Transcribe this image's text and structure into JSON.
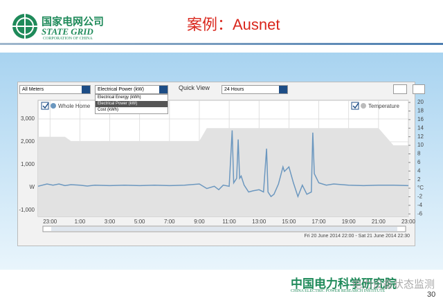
{
  "header": {
    "logo_cn": "国家电网公司",
    "logo_en": "STATE GRID",
    "logo_sub": "CORPORATION OF CHINA",
    "title": "案例：Ausnet"
  },
  "controls": {
    "meter": "All Meters",
    "measure": "Electrical Power (kW)",
    "quick_view_label": "Quick View",
    "quick_view": "24 Hours",
    "menu": [
      "Electrical Energy (kWh)",
      "Electrical Power (kW)",
      "Cost (kWh)"
    ]
  },
  "chart_data": {
    "type": "line",
    "x": [
      22.2,
      22.8,
      23.2,
      23.6,
      24.0,
      24.4,
      25,
      25.5,
      26,
      27,
      28,
      29,
      30,
      31,
      32,
      33,
      33.5,
      34,
      34.3,
      34.6,
      35.0,
      35.2,
      35.3,
      35.5,
      35.6,
      35.7,
      35.8,
      36.0,
      36.3,
      36.6,
      37.0,
      37.3,
      37.5,
      37.6,
      37.8,
      38.0,
      38.3,
      38.6,
      38.7,
      39.0,
      39.3,
      39.6,
      39.9,
      40.2,
      40.5,
      40.6,
      40.7,
      41.0,
      41.5,
      42,
      43,
      44,
      45,
      46,
      47
    ],
    "series": [
      {
        "name": "Temperature",
        "color": "#e2e2e2",
        "axis": "y2",
        "values": [
          12,
          12,
          12,
          12,
          12,
          11,
          11,
          11,
          11,
          11,
          11,
          11,
          11,
          11,
          11,
          11,
          14,
          14,
          14,
          14,
          14,
          14,
          14,
          14,
          14,
          14,
          14,
          14,
          14,
          14,
          14,
          14,
          14,
          14,
          14,
          14,
          14,
          14,
          14,
          14,
          14,
          14,
          14,
          14,
          14,
          14,
          14,
          14,
          14,
          14,
          14,
          14,
          14,
          10,
          10
        ]
      },
      {
        "name": "Whole Home",
        "color": "#6b97bf",
        "values": [
          50,
          150,
          100,
          150,
          80,
          120,
          100,
          60,
          100,
          80,
          100,
          80,
          100,
          80,
          100,
          150,
          -50,
          50,
          -100,
          100,
          50,
          2500,
          200,
          400,
          2100,
          400,
          500,
          100,
          -200,
          -150,
          -100,
          -200,
          1700,
          -200,
          -400,
          -300,
          150,
          900,
          700,
          900,
          200,
          -400,
          100,
          -300,
          -200,
          2400,
          600,
          200,
          100,
          150,
          100,
          80,
          100,
          100,
          80
        ]
      }
    ],
    "xlim": [
      22.2,
      47.0
    ],
    "xticks": [
      {
        "value": 23,
        "label": "23:00"
      },
      {
        "value": 25,
        "label": "1:00"
      },
      {
        "value": 27,
        "label": "3:00"
      },
      {
        "value": 29,
        "label": "5:00"
      },
      {
        "value": 31,
        "label": "7:00"
      },
      {
        "value": 33,
        "label": "9:00"
      },
      {
        "value": 35,
        "label": "11:00"
      },
      {
        "value": 37,
        "label": "13:00"
      },
      {
        "value": 39,
        "label": "15:00"
      },
      {
        "value": 41,
        "label": "17:00"
      },
      {
        "value": 43,
        "label": "19:00"
      },
      {
        "value": 45,
        "label": "21:00"
      },
      {
        "value": 47,
        "label": "23:00"
      }
    ],
    "ylim": [
      -1273,
      3818
    ],
    "yticks": [
      {
        "value": 3000,
        "label": "3,000"
      },
      {
        "value": 2000,
        "label": "2,000"
      },
      {
        "value": 1000,
        "label": "1,000"
      },
      {
        "value": 0,
        "label": "W"
      },
      {
        "value": -1000,
        "label": "-1,000"
      }
    ],
    "y2lim": [
      -6.6,
      20.5
    ],
    "y2ticks": [
      20,
      18,
      16,
      14,
      12,
      10,
      8,
      6,
      4,
      2,
      {
        "value": 0,
        "label": "°C"
      },
      -2,
      -4,
      -6
    ],
    "grid": true
  },
  "footer": {
    "range": "Fri 20 June 2014 22:00 - Sat 21 June 2014 22:30",
    "page": "30",
    "institute_cn": "中国电力科学研究院",
    "institute_en": "CHINA ELECTRIC POWER RESEARCH INSTITUTE",
    "watermark": "电力设备状态监测"
  }
}
